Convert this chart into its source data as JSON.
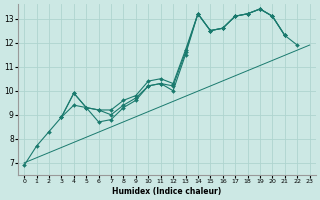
{
  "xlabel": "Humidex (Indice chaleur)",
  "bg_color": "#cce8e4",
  "grid_color": "#afd4cf",
  "line_color": "#1a7a6e",
  "xlim": [
    -0.5,
    23.5
  ],
  "ylim": [
    6.5,
    13.6
  ],
  "xticks": [
    0,
    1,
    2,
    3,
    4,
    5,
    6,
    7,
    8,
    9,
    10,
    11,
    12,
    13,
    14,
    15,
    16,
    17,
    18,
    19,
    20,
    21,
    22,
    23
  ],
  "yticks": [
    7,
    8,
    9,
    10,
    11,
    12,
    13
  ],
  "series": [
    {
      "x": [
        0,
        1,
        2,
        3,
        4,
        5,
        6,
        7,
        8,
        9,
        10,
        11,
        12,
        13,
        14,
        15,
        16,
        17,
        18,
        19,
        20,
        21,
        22
      ],
      "y": [
        6.9,
        7.7,
        8.3,
        8.9,
        9.9,
        9.3,
        8.7,
        8.8,
        9.3,
        9.6,
        10.2,
        10.3,
        10.2,
        11.6,
        13.2,
        12.5,
        12.6,
        13.1,
        13.2,
        13.4,
        13.1,
        12.3,
        11.9
      ],
      "marker": true
    },
    {
      "x": [
        3,
        4,
        5,
        6,
        7,
        8,
        9,
        10,
        11,
        12,
        13,
        14,
        15,
        16,
        17,
        18,
        19,
        20,
        21
      ],
      "y": [
        8.9,
        9.9,
        9.3,
        9.2,
        9.2,
        9.6,
        9.8,
        10.4,
        10.5,
        10.3,
        11.7,
        13.2,
        12.5,
        12.6,
        13.1,
        13.2,
        13.4,
        13.1,
        12.3
      ],
      "marker": true
    },
    {
      "x": [
        3,
        4,
        5,
        6,
        7,
        8,
        9,
        10,
        11,
        12,
        13,
        14,
        15,
        16,
        17,
        18,
        19,
        20,
        21
      ],
      "y": [
        8.9,
        9.4,
        9.3,
        9.2,
        9.0,
        9.4,
        9.7,
        10.2,
        10.3,
        10.0,
        11.5,
        13.2,
        12.5,
        12.6,
        13.1,
        13.2,
        13.4,
        13.1,
        12.3
      ],
      "marker": true
    },
    {
      "x": [
        0,
        23
      ],
      "y": [
        7.0,
        11.9
      ],
      "marker": false
    }
  ]
}
